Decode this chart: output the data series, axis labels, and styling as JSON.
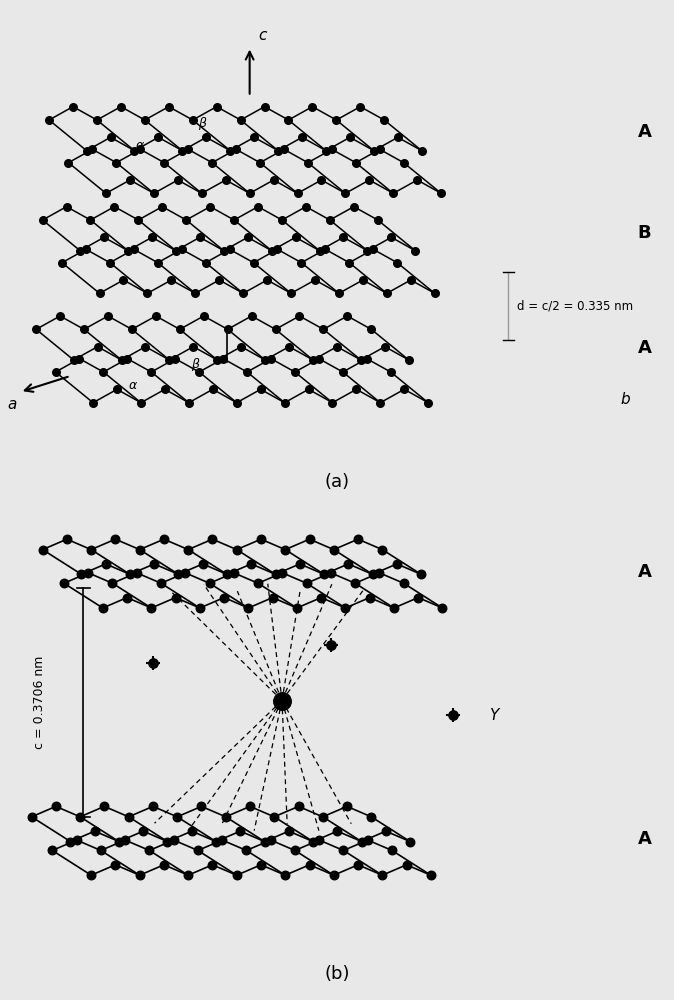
{
  "bg_color": "#e8e8e8",
  "node_color": "#111111",
  "edge_color": "#111111",
  "title_a": "(a)",
  "title_b": "(b)",
  "label_A": "A",
  "label_B": "B",
  "label_c_axis": "c",
  "label_a": "a",
  "label_b": "b",
  "label_alpha": "α",
  "label_beta": "β",
  "label_d": "d = c/2 = 0.335 nm",
  "label_c2": "c = 0.3706 nm",
  "label_Y": "Y"
}
